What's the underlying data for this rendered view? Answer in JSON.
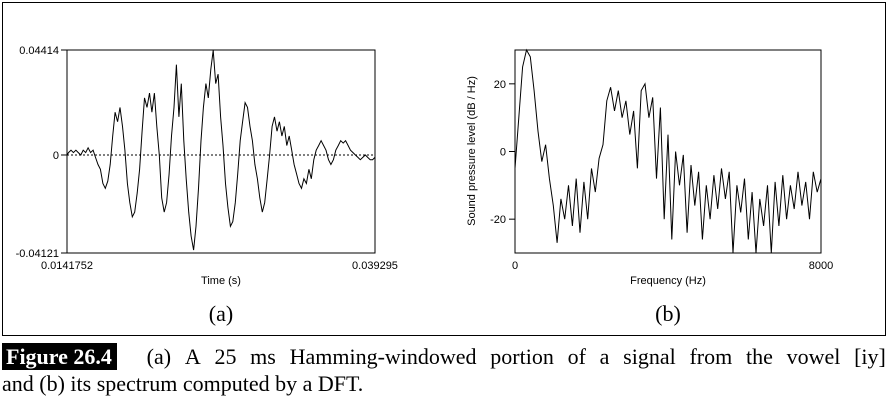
{
  "chart_data": [
    {
      "type": "line",
      "panel": "(a)",
      "title": "",
      "xlabel": "Time (s)",
      "ylabel": "",
      "xlim": [
        0.0141752,
        0.039295
      ],
      "ylim": [
        -0.04121,
        0.04414
      ],
      "x_ticks": [
        "0.0141752",
        "0.039295"
      ],
      "y_ticks": [
        "0.04414",
        "0",
        "-0.04121"
      ],
      "zero_line": "dotted",
      "series": [
        {
          "name": "waveform",
          "x": [
            0.01418,
            0.0143,
            0.0145,
            0.0147,
            0.0149,
            0.0151,
            0.0153,
            0.0155,
            0.0157,
            0.0159,
            0.0161,
            0.0163,
            0.0165,
            0.0167,
            0.0169,
            0.0171,
            0.0173,
            0.0175,
            0.0177,
            0.0179,
            0.0181,
            0.0183,
            0.0185,
            0.0187,
            0.0189,
            0.0191,
            0.0193,
            0.0195,
            0.0197,
            0.0199,
            0.0201,
            0.0203,
            0.0205,
            0.0207,
            0.0209,
            0.0211,
            0.0213,
            0.0215,
            0.0217,
            0.0219,
            0.0221,
            0.0223,
            0.0225,
            0.0227,
            0.0229,
            0.0231,
            0.0233,
            0.0235,
            0.0237,
            0.0239,
            0.0241,
            0.0243,
            0.0245,
            0.0247,
            0.0249,
            0.0251,
            0.0253,
            0.0255,
            0.0257,
            0.0259,
            0.0261,
            0.0263,
            0.0265,
            0.0267,
            0.0269,
            0.0271,
            0.0273,
            0.0275,
            0.0277,
            0.0279,
            0.0281,
            0.0283,
            0.0285,
            0.0287,
            0.0289,
            0.0291,
            0.0293,
            0.0295,
            0.0297,
            0.0299,
            0.0301,
            0.0303,
            0.0305,
            0.0307,
            0.0309,
            0.0311,
            0.0313,
            0.0315,
            0.0317,
            0.0319,
            0.0321,
            0.0323,
            0.0325,
            0.0327,
            0.0329,
            0.0331,
            0.0333,
            0.0335,
            0.0337,
            0.0339,
            0.0341,
            0.0343,
            0.0345,
            0.0347,
            0.0349,
            0.0351,
            0.0353,
            0.0355,
            0.0357,
            0.0359,
            0.0361,
            0.0363,
            0.0365,
            0.0367,
            0.0369,
            0.0371,
            0.0373,
            0.0375,
            0.0377,
            0.0379,
            0.0381,
            0.0383,
            0.0385,
            0.0387,
            0.0389,
            0.0391,
            0.03929
          ],
          "y": [
            0.0,
            0.001,
            0.002,
            0.001,
            0.002,
            0.001,
            0.0,
            0.002,
            0.001,
            0.003,
            0.001,
            0.002,
            -0.001,
            -0.004,
            -0.006,
            -0.012,
            -0.014,
            -0.011,
            -0.004,
            0.008,
            0.018,
            0.014,
            0.02,
            0.012,
            0.002,
            -0.012,
            -0.02,
            -0.026,
            -0.024,
            -0.016,
            -0.006,
            0.01,
            0.024,
            0.02,
            0.026,
            0.018,
            0.026,
            0.012,
            0.0,
            -0.018,
            -0.024,
            -0.02,
            -0.008,
            0.008,
            0.02,
            0.038,
            0.016,
            0.03,
            0.006,
            -0.01,
            -0.024,
            -0.034,
            -0.04,
            -0.03,
            -0.014,
            0.006,
            0.02,
            0.03,
            0.024,
            0.036,
            0.044,
            0.03,
            0.034,
            0.016,
            0.004,
            -0.012,
            -0.022,
            -0.03,
            -0.028,
            -0.02,
            -0.008,
            0.006,
            0.014,
            0.022,
            0.02,
            0.012,
            0.006,
            -0.004,
            -0.01,
            -0.018,
            -0.024,
            -0.02,
            -0.01,
            0.0,
            0.012,
            0.016,
            0.01,
            0.014,
            0.008,
            0.012,
            0.004,
            0.008,
            0.002,
            -0.004,
            -0.008,
            -0.012,
            -0.014,
            -0.01,
            -0.012,
            -0.006,
            -0.01,
            -0.002,
            0.002,
            0.004,
            0.006,
            0.004,
            0.002,
            -0.002,
            -0.004,
            -0.002,
            0.002,
            0.004,
            0.006,
            0.005,
            0.006,
            0.004,
            0.002,
            0.001,
            0.0,
            -0.001,
            -0.002,
            -0.001,
            0.0,
            -0.001,
            -0.002,
            -0.002,
            -0.001
          ]
        }
      ]
    },
    {
      "type": "line",
      "panel": "(b)",
      "title": "",
      "xlabel": "Frequency (Hz)",
      "ylabel": "Sound pressure level (dB / Hz)",
      "xlim": [
        0,
        8000
      ],
      "ylim": [
        -30,
        30
      ],
      "x_ticks": [
        "0",
        "8000"
      ],
      "y_ticks": [
        "20",
        "0",
        "-20"
      ],
      "series": [
        {
          "name": "spectrum",
          "x": [
            0,
            100,
            200,
            300,
            400,
            500,
            600,
            700,
            800,
            900,
            1000,
            1100,
            1200,
            1300,
            1400,
            1500,
            1600,
            1700,
            1800,
            1900,
            2000,
            2100,
            2200,
            2300,
            2400,
            2500,
            2600,
            2700,
            2800,
            2900,
            3000,
            3100,
            3200,
            3300,
            3400,
            3500,
            3600,
            3700,
            3800,
            3900,
            4000,
            4100,
            4200,
            4300,
            4400,
            4500,
            4600,
            4700,
            4800,
            4900,
            5000,
            5100,
            5200,
            5300,
            5400,
            5500,
            5600,
            5700,
            5800,
            5900,
            6000,
            6100,
            6200,
            6300,
            6400,
            6500,
            6600,
            6700,
            6800,
            6900,
            7000,
            7100,
            7200,
            7300,
            7400,
            7500,
            7600,
            7700,
            7800,
            7900,
            8000
          ],
          "y": [
            -5,
            10,
            25,
            30,
            28,
            18,
            6,
            -3,
            2,
            -8,
            -16,
            -27,
            -14,
            -20,
            -10,
            -22,
            -8,
            -24,
            -9,
            -20,
            -5,
            -12,
            -2,
            2,
            15,
            19,
            12,
            18,
            10,
            15,
            5,
            12,
            -5,
            18,
            20,
            10,
            16,
            -8,
            13,
            -20,
            5,
            -26,
            0,
            -10,
            -1,
            -24,
            -4,
            -16,
            -6,
            -26,
            -10,
            -20,
            -7,
            -17,
            -5,
            -14,
            -6,
            -30,
            -10,
            -18,
            -8,
            -26,
            -12,
            -30,
            -14,
            -22,
            -10,
            -30,
            -9,
            -22,
            -7,
            -20,
            -10,
            -17,
            -6,
            -16,
            -9,
            -20,
            -6,
            -12,
            -8
          ]
        }
      ]
    }
  ],
  "labels": {
    "panel_a": "(a)",
    "panel_b": "(b)"
  },
  "caption": {
    "figure_label": "Figure 26.4",
    "line1": [
      "(a)",
      "A",
      "25",
      "ms",
      "Hamming-windowed",
      "portion",
      "of",
      "a",
      "signal",
      "from",
      "the",
      "vowel",
      "[iy]"
    ],
    "line2": "and   (b) its spectrum computed by a DFT."
  }
}
